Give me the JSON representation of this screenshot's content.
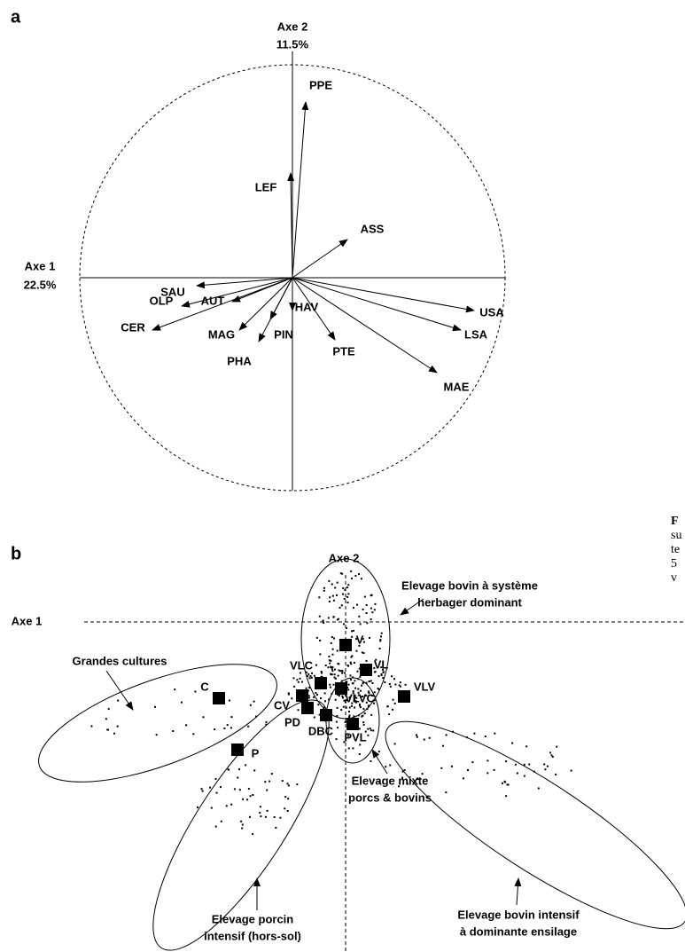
{
  "panel_a": {
    "label": "a",
    "axis2": {
      "name": "Axe 2",
      "percent": "11.5%"
    },
    "axis1": {
      "name": "Axe 1",
      "percent": "22.5%"
    },
    "variables": [
      "PPE",
      "LEF",
      "ASS",
      "SAU",
      "AUT",
      "OLP",
      "MAG",
      "CER",
      "PHA",
      "HAV",
      "PIN",
      "PTE",
      "USA",
      "LSA",
      "MAE"
    ]
  },
  "panel_b": {
    "label": "b",
    "axis2": "Axe 2",
    "axis1": "Axe 1",
    "points": [
      "V",
      "VL",
      "VLC",
      "VLVC",
      "VLV",
      "CV",
      "C",
      "PD",
      "DBC",
      "PVL",
      "P"
    ],
    "groups": [
      {
        "lines": [
          "Elevage bovin à système",
          "herbager dominant"
        ]
      },
      {
        "lines": [
          "Grandes cultures"
        ]
      },
      {
        "lines": [
          "Elevage mixte",
          "porcs & bovins"
        ]
      },
      {
        "lines": [
          "Elevage porcin",
          "intensif (hors-sol)"
        ]
      },
      {
        "lines": [
          "Elevage bovin intensif",
          "à dominante ensilage"
        ]
      }
    ]
  },
  "caption_fragments": [
    "F",
    "su",
    "te",
    "5",
    "v"
  ]
}
